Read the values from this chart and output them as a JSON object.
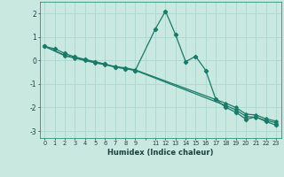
{
  "xlabel": "Humidex (Indice chaleur)",
  "background_color": "#c8e8e0",
  "grid_color": "#a8d8cf",
  "line_color": "#1a7a6a",
  "xlim": [
    -0.5,
    23.5
  ],
  "ylim": [
    -3.3,
    2.5
  ],
  "yticks": [
    -3,
    -2,
    -1,
    0,
    1,
    2
  ],
  "series": [
    {
      "x": [
        0,
        1,
        2,
        3,
        4,
        5,
        6,
        7,
        8,
        9,
        11,
        12,
        13,
        14,
        15,
        16,
        17,
        18,
        19,
        20,
        21,
        22,
        23
      ],
      "y": [
        0.6,
        0.5,
        0.3,
        0.15,
        0.05,
        -0.05,
        -0.15,
        -0.28,
        -0.35,
        -0.42,
        1.35,
        2.1,
        1.1,
        -0.05,
        0.18,
        -0.42,
        -1.65,
        -2.0,
        -2.2,
        -2.5,
        -2.4,
        -2.6,
        -2.75
      ]
    },
    {
      "x": [
        0,
        2,
        3,
        4,
        5,
        6,
        7,
        8,
        9,
        18,
        19,
        20,
        21,
        22,
        23
      ],
      "y": [
        0.6,
        0.2,
        0.1,
        0.0,
        -0.1,
        -0.18,
        -0.28,
        -0.33,
        -0.42,
        -1.92,
        -2.1,
        -2.38,
        -2.42,
        -2.55,
        -2.65
      ]
    },
    {
      "x": [
        0,
        2,
        3,
        4,
        5,
        6,
        7,
        8,
        9,
        18,
        19,
        20,
        21,
        22,
        23
      ],
      "y": [
        0.6,
        0.22,
        0.12,
        0.02,
        -0.08,
        -0.16,
        -0.26,
        -0.31,
        -0.4,
        -1.82,
        -2.0,
        -2.28,
        -2.32,
        -2.48,
        -2.58
      ]
    }
  ]
}
